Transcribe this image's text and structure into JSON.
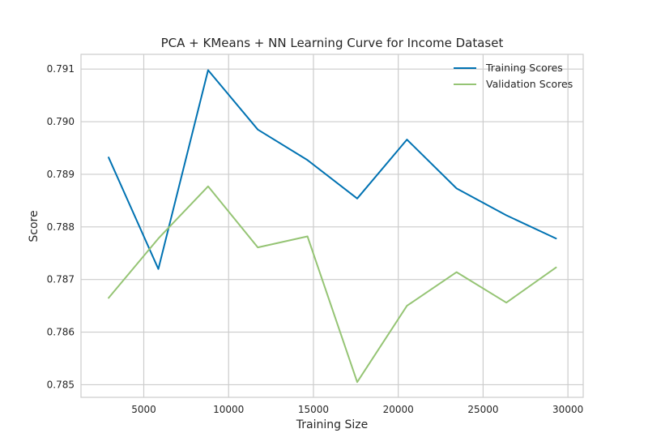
{
  "chart_data": {
    "type": "line",
    "title": "PCA + KMeans + NN Learning Curve for Income Dataset",
    "xlabel": "Training Size",
    "ylabel": "Score",
    "xlim": [
      1300,
      30900
    ],
    "ylim": [
      0.78476,
      0.79128
    ],
    "xticks": [
      5000,
      10000,
      15000,
      20000,
      25000,
      30000
    ],
    "yticks": [
      0.785,
      0.786,
      0.787,
      0.788,
      0.789,
      0.79,
      0.791
    ],
    "ytick_labels": [
      "0.785",
      "0.786",
      "0.787",
      "0.788",
      "0.789",
      "0.790",
      "0.791"
    ],
    "grid": true,
    "legend_position": "top-right",
    "x": [
      2930,
      5860,
      8790,
      11720,
      14650,
      17580,
      20510,
      23440,
      26370,
      29300
    ],
    "series": [
      {
        "name": "Training Scores",
        "color": "#0072B2",
        "values": [
          0.78932,
          0.7872,
          0.79098,
          0.78985,
          0.78927,
          0.78854,
          0.78966,
          0.78873,
          0.78822,
          0.78778
        ]
      },
      {
        "name": "Validation Scores",
        "color": "#95C474",
        "values": [
          0.78665,
          0.78778,
          0.78877,
          0.78761,
          0.78782,
          0.78505,
          0.7865,
          0.78714,
          0.78656,
          0.78723
        ]
      }
    ]
  }
}
